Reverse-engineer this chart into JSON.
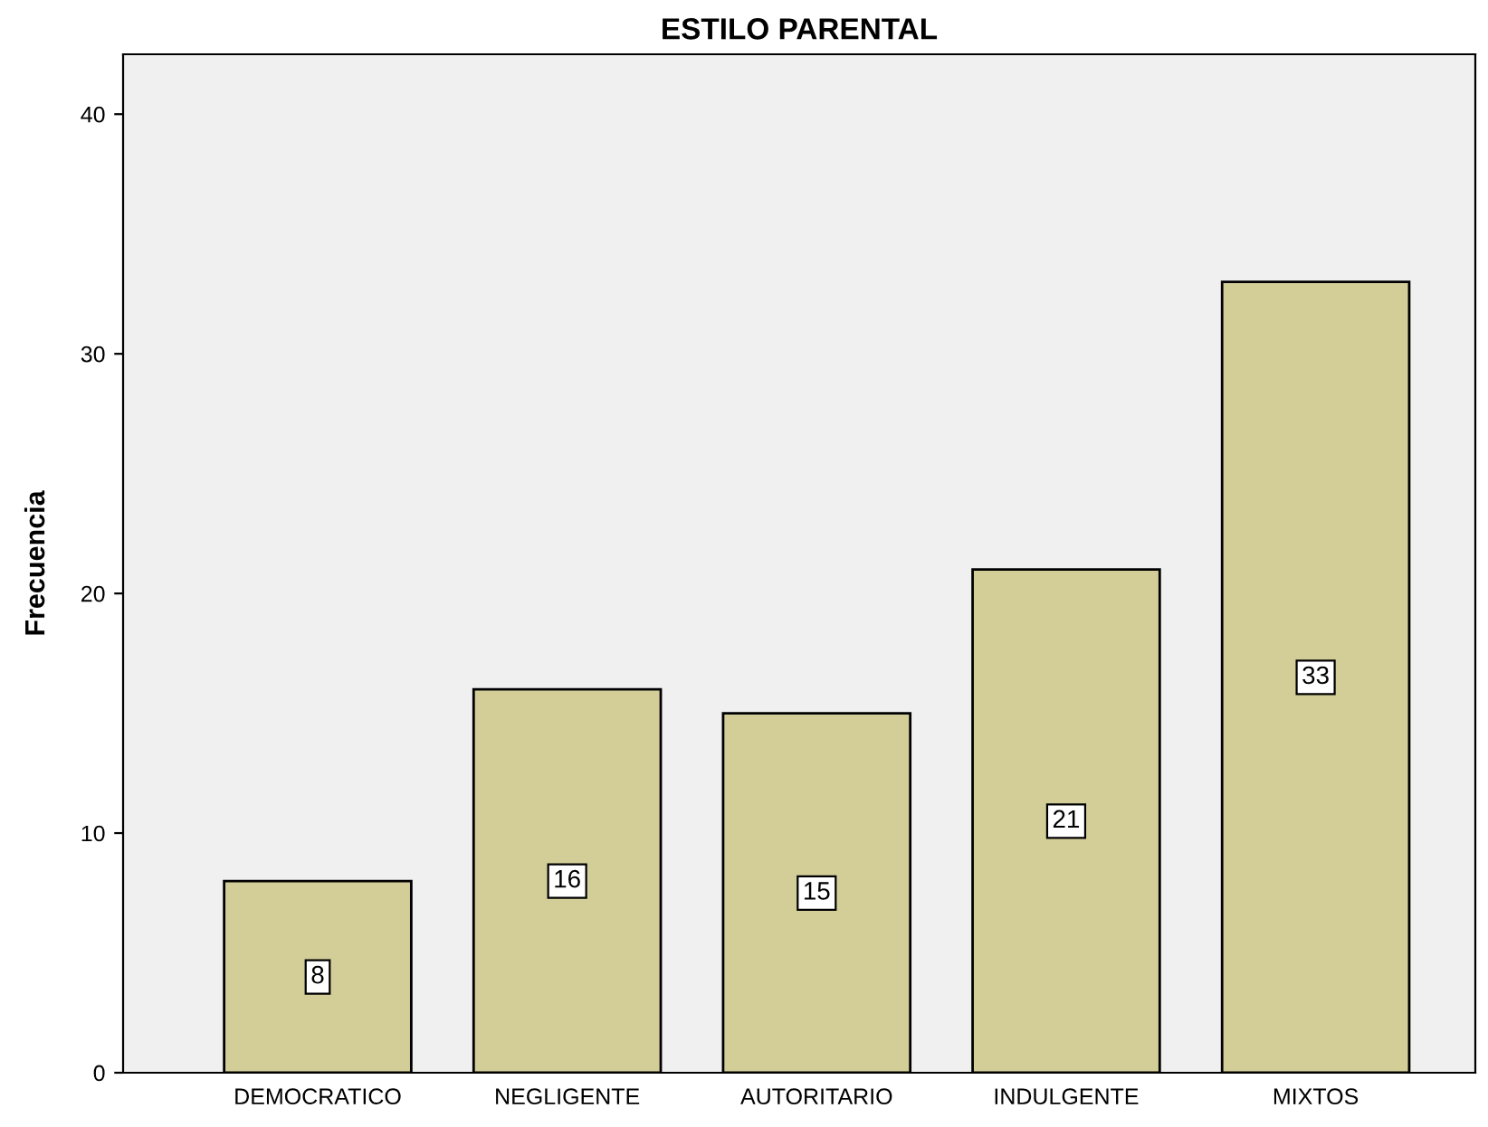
{
  "chart_data": {
    "type": "bar",
    "title": "ESTILO PARENTAL",
    "ylabel": "Frecuencia",
    "categories": [
      "DEMOCRATICO",
      "NEGLIGENTE",
      "AUTORITARIO",
      "INDULGENTE",
      "MIXTOS"
    ],
    "values": [
      8,
      16,
      15,
      21,
      33
    ],
    "color": "#d3ce98",
    "ylim": [
      0,
      42.5
    ],
    "yticks": [
      0,
      10,
      20,
      30,
      40
    ],
    "grid": false,
    "data_labels": true
  }
}
